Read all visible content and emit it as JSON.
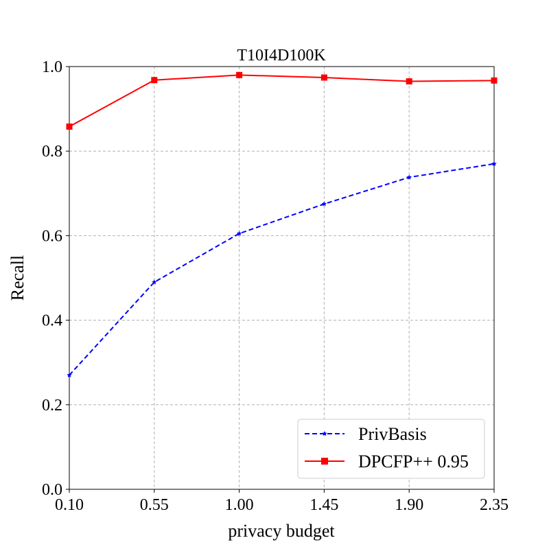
{
  "chart_data": {
    "type": "line",
    "title": "T10I4D100K",
    "xlabel": "privacy budget",
    "ylabel": "Recall",
    "x": [
      0.1,
      0.55,
      1.0,
      1.45,
      1.9,
      2.35
    ],
    "x_tick_labels": [
      "0.10",
      "0.55",
      "1.00",
      "1.45",
      "1.90",
      "2.35"
    ],
    "y_ticks": [
      0.0,
      0.2,
      0.4,
      0.6,
      0.8,
      1.0
    ],
    "y_tick_labels": [
      "0.0",
      "0.2",
      "0.4",
      "0.6",
      "0.8",
      "1.0"
    ],
    "xlim": [
      0.1,
      2.35
    ],
    "ylim": [
      0.0,
      1.0
    ],
    "grid": true,
    "legend_position": "bottom-right",
    "series": [
      {
        "name": "PrivBasis",
        "values": [
          0.27,
          0.49,
          0.605,
          0.675,
          0.738,
          0.77
        ],
        "color": "#0000ff",
        "line_style": "dashed",
        "marker": "star"
      },
      {
        "name": "DPCFP++ 0.95",
        "values": [
          0.858,
          0.968,
          0.98,
          0.974,
          0.965,
          0.967
        ],
        "color": "#ff0000",
        "line_style": "solid",
        "marker": "square"
      }
    ]
  }
}
